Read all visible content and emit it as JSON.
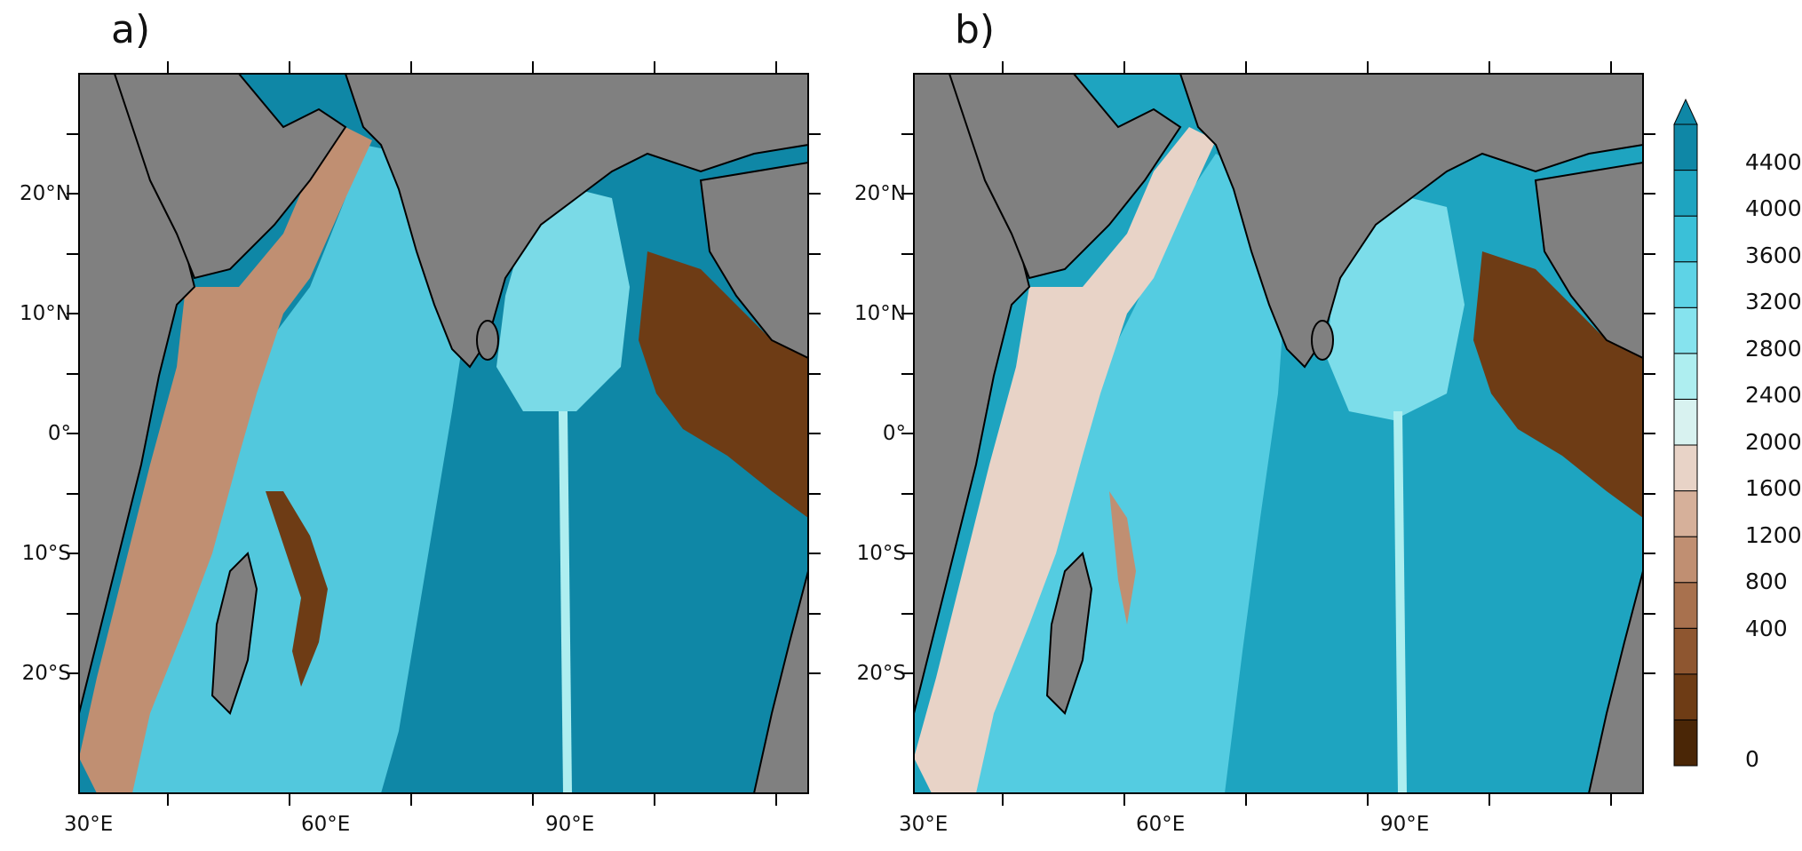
{
  "panels": [
    {
      "label": "a)"
    },
    {
      "label": "b)"
    }
  ],
  "axes": {
    "x_ticks": [
      "30°E",
      "60°E",
      "90°E"
    ],
    "y_ticks": [
      "20°N",
      "10°N",
      "0°",
      "10°S",
      "20°S"
    ]
  },
  "colorbar": {
    "labels": [
      "4400",
      "4000",
      "3600",
      "3200",
      "2800",
      "2400",
      "2000",
      "1600",
      "1200",
      "800",
      "400",
      "0"
    ],
    "colors": [
      "#4a2606",
      "#6e3c15",
      "#8e5630",
      "#a8714e",
      "#c08f72",
      "#d6b09a",
      "#e8d3c7",
      "#d8f2f0",
      "#aeeef0",
      "#86e3ee",
      "#5ed3e6",
      "#3ac0d8",
      "#1ea4c0",
      "#0f87a6"
    ],
    "extend_max": true
  },
  "colors": {
    "land": "#808080",
    "deep_ocean": "#0f87a6",
    "shallow": "#4a2606",
    "coastline": "#000000"
  }
}
